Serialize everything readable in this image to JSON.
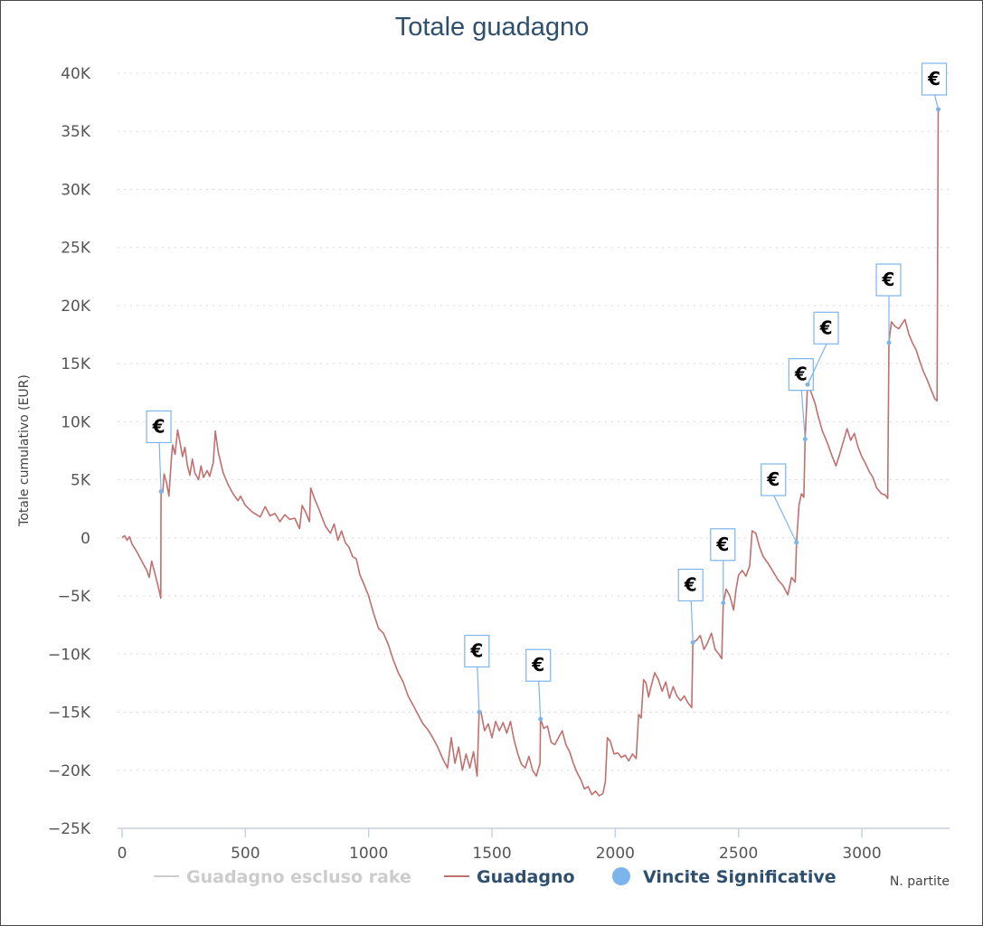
{
  "chart_data": {
    "type": "line",
    "title": "Totale guadagno",
    "ylabel": "Totale cumulativo (EUR)",
    "xlabel": "N. partite",
    "xlim": [
      0,
      3330
    ],
    "ylim": [
      -25000,
      40000
    ],
    "x_ticks": [
      0,
      500,
      1000,
      1500,
      2000,
      2500,
      3000
    ],
    "x_tick_labels": [
      "0",
      "500",
      "1000",
      "1500",
      "2000",
      "2500",
      "3000"
    ],
    "y_ticks": [
      40000,
      35000,
      30000,
      25000,
      20000,
      15000,
      10000,
      5000,
      0,
      -5000,
      -10000,
      -15000,
      -20000,
      -25000
    ],
    "y_tick_labels": [
      "40K",
      "35K",
      "30K",
      "25K",
      "20K",
      "15K",
      "10K",
      "5K",
      "0",
      "−5K",
      "−10K",
      "−15K",
      "−20K",
      "−25K"
    ],
    "grid": true,
    "series": [
      {
        "name": "Guadagno escluso rake",
        "color": "#cccccc",
        "visible": false,
        "points": []
      },
      {
        "name": "Guadagno",
        "color": "#c0706e",
        "visible": true,
        "points": [
          [
            0,
            0
          ],
          [
            10,
            200
          ],
          [
            20,
            -200
          ],
          [
            30,
            100
          ],
          [
            40,
            -500
          ],
          [
            60,
            -1200
          ],
          [
            80,
            -2000
          ],
          [
            100,
            -2800
          ],
          [
            110,
            -3400
          ],
          [
            120,
            -2000
          ],
          [
            135,
            -3200
          ],
          [
            150,
            -4500
          ],
          [
            157,
            -5200
          ],
          [
            158,
            4000
          ],
          [
            165,
            3900
          ],
          [
            170,
            5500
          ],
          [
            180,
            4800
          ],
          [
            190,
            3600
          ],
          [
            200,
            6800
          ],
          [
            205,
            8000
          ],
          [
            215,
            7200
          ],
          [
            225,
            9300
          ],
          [
            235,
            8200
          ],
          [
            245,
            7000
          ],
          [
            255,
            7800
          ],
          [
            265,
            6200
          ],
          [
            275,
            5400
          ],
          [
            285,
            6800
          ],
          [
            295,
            5600
          ],
          [
            310,
            5000
          ],
          [
            320,
            6200
          ],
          [
            330,
            5200
          ],
          [
            345,
            5800
          ],
          [
            355,
            5300
          ],
          [
            370,
            6500
          ],
          [
            378,
            9200
          ],
          [
            390,
            7400
          ],
          [
            410,
            5600
          ],
          [
            430,
            4600
          ],
          [
            450,
            3800
          ],
          [
            470,
            3200
          ],
          [
            480,
            3600
          ],
          [
            500,
            2800
          ],
          [
            530,
            2200
          ],
          [
            560,
            1800
          ],
          [
            580,
            2700
          ],
          [
            600,
            1900
          ],
          [
            620,
            2100
          ],
          [
            640,
            1400
          ],
          [
            660,
            2000
          ],
          [
            680,
            1600
          ],
          [
            700,
            1700
          ],
          [
            720,
            800
          ],
          [
            730,
            2800
          ],
          [
            745,
            2200
          ],
          [
            760,
            1400
          ],
          [
            765,
            4300
          ],
          [
            780,
            3400
          ],
          [
            800,
            2400
          ],
          [
            810,
            1800
          ],
          [
            825,
            1000
          ],
          [
            845,
            400
          ],
          [
            860,
            1200
          ],
          [
            875,
            -200
          ],
          [
            890,
            600
          ],
          [
            905,
            -400
          ],
          [
            920,
            -800
          ],
          [
            935,
            -1600
          ],
          [
            950,
            -1800
          ],
          [
            965,
            -3200
          ],
          [
            985,
            -4200
          ],
          [
            1000,
            -5000
          ],
          [
            1020,
            -6500
          ],
          [
            1040,
            -7800
          ],
          [
            1060,
            -8200
          ],
          [
            1080,
            -9200
          ],
          [
            1100,
            -10500
          ],
          [
            1120,
            -11600
          ],
          [
            1140,
            -12400
          ],
          [
            1160,
            -13600
          ],
          [
            1180,
            -14400
          ],
          [
            1200,
            -15200
          ],
          [
            1220,
            -16000
          ],
          [
            1240,
            -16500
          ],
          [
            1260,
            -17200
          ],
          [
            1280,
            -18000
          ],
          [
            1300,
            -19000
          ],
          [
            1320,
            -19800
          ],
          [
            1335,
            -17200
          ],
          [
            1350,
            -19400
          ],
          [
            1365,
            -18000
          ],
          [
            1380,
            -20000
          ],
          [
            1395,
            -18600
          ],
          [
            1410,
            -19800
          ],
          [
            1425,
            -18400
          ],
          [
            1440,
            -20500
          ],
          [
            1448,
            -15000
          ],
          [
            1455,
            -14900
          ],
          [
            1470,
            -16600
          ],
          [
            1485,
            -16000
          ],
          [
            1500,
            -17200
          ],
          [
            1515,
            -15800
          ],
          [
            1530,
            -16600
          ],
          [
            1545,
            -15900
          ],
          [
            1560,
            -16800
          ],
          [
            1575,
            -15800
          ],
          [
            1590,
            -17400
          ],
          [
            1605,
            -18600
          ],
          [
            1620,
            -19500
          ],
          [
            1635,
            -19800
          ],
          [
            1650,
            -18800
          ],
          [
            1665,
            -20000
          ],
          [
            1680,
            -20500
          ],
          [
            1695,
            -19400
          ],
          [
            1697,
            -15600
          ],
          [
            1710,
            -16400
          ],
          [
            1725,
            -16200
          ],
          [
            1740,
            -17600
          ],
          [
            1755,
            -17800
          ],
          [
            1770,
            -17200
          ],
          [
            1785,
            -16600
          ],
          [
            1800,
            -17800
          ],
          [
            1815,
            -18400
          ],
          [
            1830,
            -19400
          ],
          [
            1845,
            -20200
          ],
          [
            1860,
            -20800
          ],
          [
            1875,
            -21600
          ],
          [
            1890,
            -21400
          ],
          [
            1905,
            -22100
          ],
          [
            1920,
            -21800
          ],
          [
            1935,
            -22200
          ],
          [
            1950,
            -22000
          ],
          [
            1960,
            -21000
          ],
          [
            1968,
            -17200
          ],
          [
            1980,
            -17500
          ],
          [
            1995,
            -18600
          ],
          [
            2010,
            -18500
          ],
          [
            2025,
            -18900
          ],
          [
            2040,
            -18700
          ],
          [
            2055,
            -19200
          ],
          [
            2070,
            -18600
          ],
          [
            2085,
            -19000
          ],
          [
            2095,
            -15200
          ],
          [
            2105,
            -15500
          ],
          [
            2115,
            -12200
          ],
          [
            2125,
            -12500
          ],
          [
            2135,
            -13700
          ],
          [
            2145,
            -12800
          ],
          [
            2160,
            -11600
          ],
          [
            2175,
            -12200
          ],
          [
            2190,
            -13200
          ],
          [
            2205,
            -12400
          ],
          [
            2220,
            -13800
          ],
          [
            2235,
            -12800
          ],
          [
            2250,
            -13600
          ],
          [
            2265,
            -14000
          ],
          [
            2280,
            -13600
          ],
          [
            2295,
            -14200
          ],
          [
            2310,
            -14600
          ],
          [
            2315,
            -9000
          ],
          [
            2330,
            -8800
          ],
          [
            2345,
            -8400
          ],
          [
            2360,
            -9600
          ],
          [
            2375,
            -9000
          ],
          [
            2390,
            -8200
          ],
          [
            2405,
            -9600
          ],
          [
            2420,
            -10000
          ],
          [
            2432,
            -10400
          ],
          [
            2438,
            -5600
          ],
          [
            2450,
            -4400
          ],
          [
            2465,
            -5000
          ],
          [
            2480,
            -6200
          ],
          [
            2490,
            -4400
          ],
          [
            2500,
            -3200
          ],
          [
            2515,
            -2800
          ],
          [
            2530,
            -3300
          ],
          [
            2545,
            -2400
          ],
          [
            2555,
            600
          ],
          [
            2570,
            400
          ],
          [
            2585,
            -800
          ],
          [
            2600,
            -1600
          ],
          [
            2620,
            -2200
          ],
          [
            2640,
            -2900
          ],
          [
            2660,
            -3600
          ],
          [
            2680,
            -4100
          ],
          [
            2700,
            -4900
          ],
          [
            2715,
            -3400
          ],
          [
            2730,
            -3800
          ],
          [
            2735,
            -400
          ],
          [
            2745,
            2800
          ],
          [
            2755,
            3800
          ],
          [
            2765,
            3500
          ],
          [
            2770,
            8500
          ],
          [
            2780,
            13200
          ],
          [
            2795,
            12500
          ],
          [
            2810,
            11600
          ],
          [
            2825,
            10300
          ],
          [
            2840,
            9200
          ],
          [
            2860,
            8200
          ],
          [
            2880,
            7000
          ],
          [
            2895,
            6200
          ],
          [
            2910,
            7200
          ],
          [
            2925,
            8300
          ],
          [
            2940,
            9400
          ],
          [
            2955,
            8400
          ],
          [
            2970,
            9000
          ],
          [
            2985,
            7800
          ],
          [
            3000,
            7000
          ],
          [
            3015,
            6400
          ],
          [
            3030,
            5700
          ],
          [
            3045,
            5200
          ],
          [
            3060,
            4300
          ],
          [
            3080,
            3800
          ],
          [
            3095,
            3700
          ],
          [
            3105,
            3400
          ],
          [
            3110,
            16800
          ],
          [
            3120,
            18600
          ],
          [
            3135,
            18200
          ],
          [
            3150,
            18000
          ],
          [
            3165,
            18500
          ],
          [
            3175,
            18800
          ],
          [
            3190,
            17600
          ],
          [
            3205,
            16800
          ],
          [
            3220,
            16200
          ],
          [
            3235,
            15200
          ],
          [
            3250,
            14300
          ],
          [
            3265,
            13600
          ],
          [
            3280,
            12800
          ],
          [
            3295,
            12000
          ],
          [
            3305,
            11800
          ],
          [
            3310,
            36900
          ]
        ]
      },
      {
        "name": "Vincite Significative",
        "color": "#7cb5ec",
        "visible": true,
        "type": "flags",
        "symbol": "€",
        "points": [
          [
            158,
            4000
          ],
          [
            1448,
            -15000
          ],
          [
            1697,
            -15600
          ],
          [
            2315,
            -9000
          ],
          [
            2438,
            -5600
          ],
          [
            2735,
            -400
          ],
          [
            2770,
            8500
          ],
          [
            2780,
            13200
          ],
          [
            3110,
            16800
          ],
          [
            3310,
            36900
          ]
        ]
      }
    ],
    "legend": {
      "position": "bottom",
      "items": [
        {
          "label": "Guadagno escluso rake",
          "color": "#cccccc",
          "text_color": "#cccccc",
          "symbol": "line"
        },
        {
          "label": "Guadagno",
          "color": "#c0706e",
          "text_color": "#2f4f6f",
          "symbol": "line"
        },
        {
          "label": "Vincite Significative",
          "color": "#7cb5ec",
          "text_color": "#2f4f6f",
          "symbol": "circle"
        }
      ]
    }
  }
}
